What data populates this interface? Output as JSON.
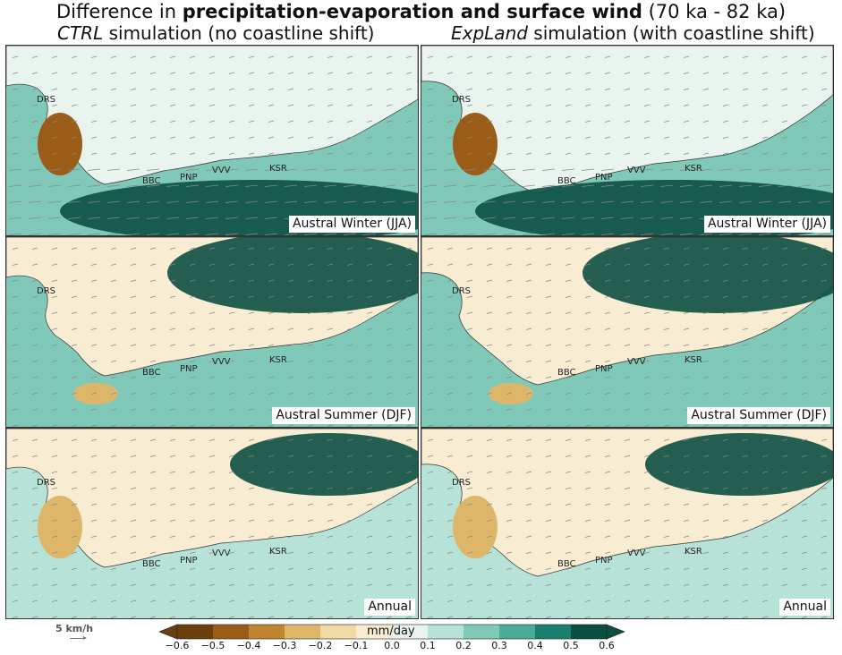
{
  "title": {
    "prefix": "Difference in ",
    "bold": "precipitation-evaporation and surface wind",
    "suffix": " (70 ka - 82 ka)"
  },
  "columns": [
    {
      "italic": "CTRL",
      "rest": " simulation (no coastline shift)"
    },
    {
      "italic": "ExpLand",
      "rest": " simulation (with coastline shift)"
    }
  ],
  "rows": [
    {
      "season": "Austral Winter (JJA)"
    },
    {
      "season": "Austral Summer (DJF)"
    },
    {
      "season": "Annual"
    }
  ],
  "places": [
    "DRS",
    "BBC",
    "PNP",
    "VVV",
    "KSR"
  ],
  "wind_reference": "5 km/h",
  "colorbar": {
    "label": "mm/day",
    "ticks": [
      "−0.6",
      "−0.5",
      "−0.4",
      "−0.3",
      "−0.2",
      "−0.1",
      "0.0",
      "0.1",
      "0.2",
      "0.3",
      "0.4",
      "0.5",
      "0.6"
    ],
    "colors": [
      "#6b3f0d",
      "#9a5c17",
      "#c08530",
      "#ddb66a",
      "#f0d9a4",
      "#f8ecd3",
      "#eaf4ef",
      "#b7e2d7",
      "#80c9b9",
      "#4aab98",
      "#1b7f6d",
      "#0b4f43"
    ]
  },
  "colors": {
    "land_dry": "#f5e6c8",
    "ocean_wet": "#0b4f43",
    "ocean_mid": "#4aab98",
    "ocean_light": "#b7e2d7"
  }
}
